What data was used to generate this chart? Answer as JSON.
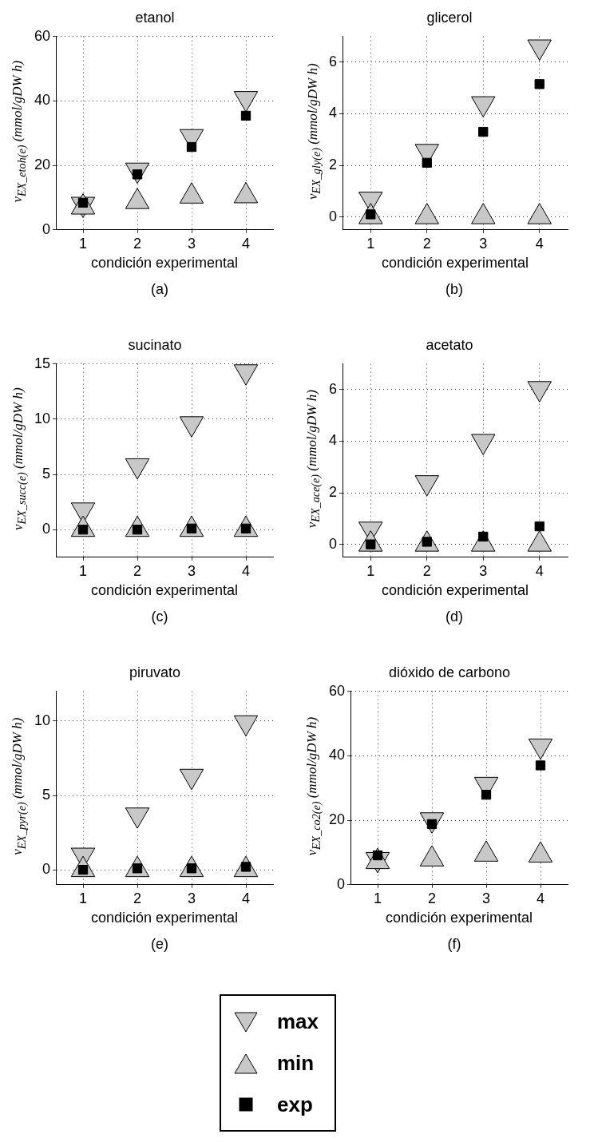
{
  "chart_data": [
    {
      "type": "scatter",
      "title": "etanol",
      "xlabel": "condición experimental",
      "ylabel": "v$_{EX_etoh(e)}$ (mmol/gDW h)",
      "annotations": [
        "(a)"
      ],
      "x": [
        1,
        2,
        3,
        4
      ],
      "xlim": [
        0.5,
        4.5
      ],
      "xticks": [
        1,
        2,
        3,
        4
      ],
      "ylim": [
        0,
        60
      ],
      "yticks": [
        0,
        20,
        40,
        60
      ],
      "grid": true,
      "series": [
        {
          "color": "#c8c8c8",
          "marker": "triangle-down",
          "values": [
            8,
            18.6,
            29,
            40.8
          ]
        },
        {
          "color": "#c8c8c8",
          "marker": "triangle",
          "values": [
            7,
            8.7,
            10.4,
            10.5
          ]
        },
        {
          "color": "#000000",
          "marker": "square",
          "values": [
            8.4,
            17.2,
            25.7,
            35.4
          ]
        }
      ]
    },
    {
      "type": "scatter",
      "title": "glicerol",
      "xlabel": "condición experimental",
      "ylabel": "v$_{EX_gly(e)}$ (mmol/gDW h)",
      "annotations": [
        "(b)"
      ],
      "x": [
        1,
        2,
        3,
        4
      ],
      "xlim": [
        0.5,
        4.5
      ],
      "xticks": [
        1,
        2,
        3,
        4
      ],
      "ylim": [
        -0.5,
        7
      ],
      "yticks": [
        0,
        2,
        4,
        6
      ],
      "grid": true,
      "series": [
        {
          "color": "#c8c8c8",
          "marker": "triangle-down",
          "values": [
            0.7,
            2.55,
            4.4,
            6.6
          ]
        },
        {
          "color": "#c8c8c8",
          "marker": "triangle",
          "values": [
            0,
            0,
            0,
            0
          ]
        },
        {
          "color": "#000000",
          "marker": "square",
          "values": [
            0.1,
            2.1,
            3.3,
            5.15
          ]
        }
      ]
    },
    {
      "type": "scatter",
      "title": "sucinato",
      "xlabel": "condición experimental",
      "ylabel": "v$_{EX_succ(e)}$ (mmol/gDW h)",
      "annotations": [
        "(c)"
      ],
      "x": [
        1,
        2,
        3,
        4
      ],
      "xlim": [
        0.5,
        4.5
      ],
      "xticks": [
        1,
        2,
        3,
        4
      ],
      "ylim": [
        -2.5,
        15
      ],
      "yticks": [
        0,
        5,
        10,
        15
      ],
      "grid": true,
      "series": [
        {
          "color": "#c8c8c8",
          "marker": "triangle-down",
          "values": [
            1.8,
            5.8,
            9.6,
            14.3
          ]
        },
        {
          "color": "#c8c8c8",
          "marker": "triangle",
          "values": [
            0,
            0,
            0,
            0
          ]
        },
        {
          "color": "#000000",
          "marker": "square",
          "values": [
            0,
            0,
            0.1,
            0.1
          ]
        }
      ]
    },
    {
      "type": "scatter",
      "title": "acetato",
      "xlabel": "condición experimental",
      "ylabel": "v$_{EX_ace(e)}$ (mmol/gDW h)",
      "annotations": [
        "(d)"
      ],
      "x": [
        1,
        2,
        3,
        4
      ],
      "xlim": [
        0.5,
        4.5
      ],
      "xticks": [
        1,
        2,
        3,
        4
      ],
      "ylim": [
        -0.5,
        7
      ],
      "yticks": [
        0,
        2,
        4,
        6
      ],
      "grid": true,
      "series": [
        {
          "color": "#c8c8c8",
          "marker": "triangle-down",
          "values": [
            0.6,
            2.4,
            4,
            6.05
          ]
        },
        {
          "color": "#c8c8c8",
          "marker": "triangle",
          "values": [
            0,
            0,
            0,
            0
          ]
        },
        {
          "color": "#000000",
          "marker": "square",
          "values": [
            0,
            0.1,
            0.3,
            0.7
          ]
        }
      ]
    },
    {
      "type": "scatter",
      "title": "piruvato",
      "xlabel": "condición experimental",
      "ylabel": "v$_{EX_pyr(e)}$ (mmol/gDW h)",
      "annotations": [
        "(e)"
      ],
      "x": [
        1,
        2,
        3,
        4
      ],
      "xlim": [
        0.5,
        4.5
      ],
      "xticks": [
        1,
        2,
        3,
        4
      ],
      "ylim": [
        -1,
        12
      ],
      "yticks": [
        0,
        5,
        10
      ],
      "grid": true,
      "series": [
        {
          "color": "#c8c8c8",
          "marker": "triangle-down",
          "values": [
            1,
            3.7,
            6.3,
            9.9
          ]
        },
        {
          "color": "#c8c8c8",
          "marker": "triangle",
          "values": [
            0,
            0,
            0,
            0
          ]
        },
        {
          "color": "#000000",
          "marker": "square",
          "values": [
            0,
            0.1,
            0.1,
            0.2
          ]
        }
      ]
    },
    {
      "type": "scatter",
      "title": "dióxido de carbono",
      "xlabel": "condición experimental",
      "ylabel": "v$_{EX_co2(e)}$ (mmol/gDW h)",
      "annotations": [
        "(f)"
      ],
      "x": [
        1,
        2,
        3,
        4
      ],
      "xlim": [
        0.5,
        4.5
      ],
      "xticks": [
        1,
        2,
        3,
        4
      ],
      "ylim": [
        0,
        60
      ],
      "yticks": [
        0,
        20,
        40,
        60
      ],
      "grid": true,
      "legend": "bottom",
      "series": [
        {
          "name": "max",
          "color": "#c8c8c8",
          "marker": "triangle-down",
          "values": [
            7.9,
            20.2,
            31.2,
            43.1
          ]
        },
        {
          "name": "min",
          "color": "#c8c8c8",
          "marker": "triangle",
          "values": [
            7.1,
            7.9,
            9.4,
            9.1
          ]
        },
        {
          "name": "exp",
          "color": "#000000",
          "marker": "square",
          "values": [
            9.1,
            18.8,
            27.9,
            37
          ]
        }
      ]
    }
  ]
}
